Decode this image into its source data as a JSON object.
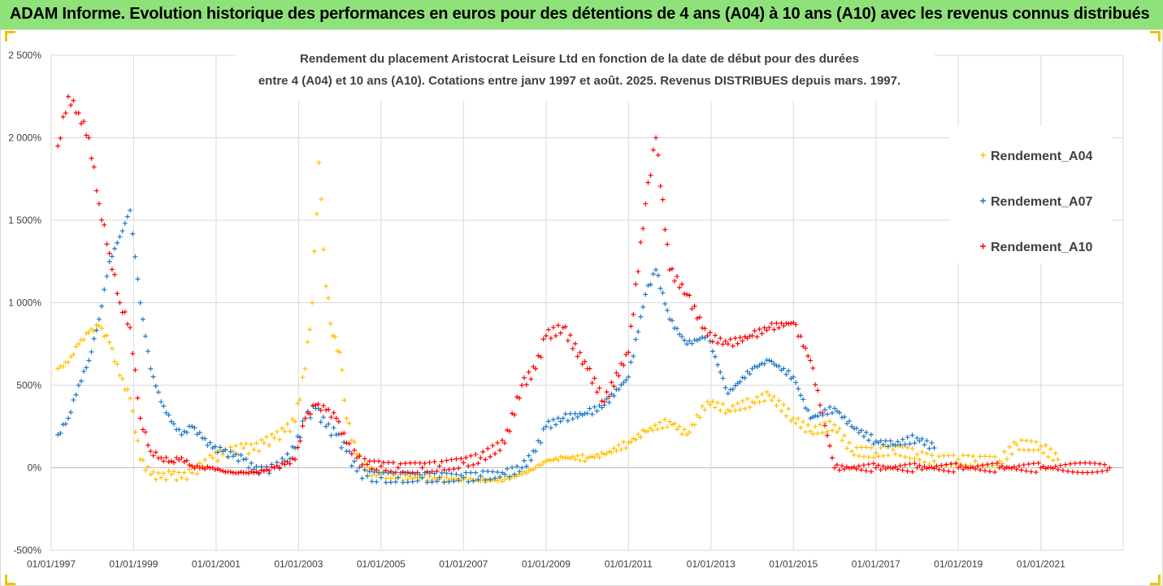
{
  "header": {
    "title": "ADAM Informe. Evolution historique des performances en euros pour des détentions de 4 ans (A04) à 10 ans (A10) avec les revenus connus distribués"
  },
  "chart_data": {
    "type": "scatter",
    "title_lines": [
      "Rendement du placement Aristocrat Leisure Ltd en fonction de la date de début pour des durées",
      "entre 4 (A04) et 10 ans (A10). Cotations entre janv 1997 et août. 2025. Revenus DISTRIBUES depuis mars. 1997."
    ],
    "xlabel": "",
    "ylabel": "",
    "x_tick_labels": [
      "01/01/1997",
      "01/01/1999",
      "01/01/2001",
      "01/01/2003",
      "01/01/2005",
      "01/01/2007",
      "01/01/2009",
      "01/01/2011",
      "01/01/2013",
      "01/01/2015",
      "01/01/2017",
      "01/01/2019",
      "01/01/2021"
    ],
    "x_range": [
      "1997-01-01",
      "2022-12-31"
    ],
    "y_tick_labels": [
      "-500%",
      "0%",
      "500%",
      "1 000%",
      "1 500%",
      "2 000%",
      "2 500%"
    ],
    "ylim": [
      -500,
      2500
    ],
    "grid": true,
    "legend_position": "right",
    "series": [
      {
        "name": "Rendement_A04",
        "color": "#ffc000",
        "points": [
          [
            "1997-03-01",
            600
          ],
          [
            "1997-06-01",
            640
          ],
          [
            "1997-09-01",
            750
          ],
          [
            "1997-12-01",
            820
          ],
          [
            "1998-03-01",
            860
          ],
          [
            "1998-06-01",
            760
          ],
          [
            "1998-09-01",
            560
          ],
          [
            "1998-12-01",
            420
          ],
          [
            "1999-03-01",
            50
          ],
          [
            "1999-06-01",
            -40
          ],
          [
            "1999-09-01",
            -60
          ],
          [
            "1999-12-01",
            -40
          ],
          [
            "2000-03-01",
            -60
          ],
          [
            "2000-06-01",
            -30
          ],
          [
            "2000-09-01",
            10
          ],
          [
            "2000-12-01",
            60
          ],
          [
            "2001-03-01",
            80
          ],
          [
            "2001-06-01",
            100
          ],
          [
            "2001-09-01",
            120
          ],
          [
            "2001-12-01",
            110
          ],
          [
            "2002-03-01",
            150
          ],
          [
            "2002-06-01",
            180
          ],
          [
            "2002-09-01",
            220
          ],
          [
            "2002-12-01",
            280
          ],
          [
            "2003-03-01",
            600
          ],
          [
            "2003-05-01",
            1000
          ],
          [
            "2003-07-01",
            1850
          ],
          [
            "2003-09-01",
            1100
          ],
          [
            "2003-11-01",
            800
          ],
          [
            "2004-01-01",
            700
          ],
          [
            "2004-03-01",
            300
          ],
          [
            "2004-06-01",
            80
          ],
          [
            "2004-09-01",
            -20
          ],
          [
            "2005-01-01",
            -40
          ],
          [
            "2005-06-01",
            -60
          ],
          [
            "2006-01-01",
            -60
          ],
          [
            "2006-06-01",
            -70
          ],
          [
            "2007-01-01",
            -70
          ],
          [
            "2007-06-01",
            -80
          ],
          [
            "2008-01-01",
            -70
          ],
          [
            "2008-06-01",
            -40
          ],
          [
            "2008-10-01",
            0
          ],
          [
            "2009-01-01",
            40
          ],
          [
            "2009-06-01",
            60
          ],
          [
            "2010-01-01",
            60
          ],
          [
            "2010-06-01",
            80
          ],
          [
            "2011-01-01",
            150
          ],
          [
            "2011-06-01",
            220
          ],
          [
            "2012-01-01",
            280
          ],
          [
            "2012-06-01",
            200
          ],
          [
            "2012-12-01",
            400
          ],
          [
            "2013-06-01",
            350
          ],
          [
            "2014-01-01",
            400
          ],
          [
            "2014-06-01",
            440
          ],
          [
            "2015-01-01",
            300
          ],
          [
            "2015-06-01",
            220
          ],
          [
            "2016-01-01",
            260
          ],
          [
            "2016-06-01",
            100
          ],
          [
            "2017-01-01",
            90
          ],
          [
            "2017-06-01",
            110
          ],
          [
            "2018-01-01",
            80
          ],
          [
            "2018-06-01",
            40
          ],
          [
            "2019-01-01",
            50
          ],
          [
            "2019-06-01",
            40
          ],
          [
            "2020-01-01",
            40
          ],
          [
            "2020-06-01",
            140
          ],
          [
            "2021-01-01",
            130
          ],
          [
            "2021-06-01",
            50
          ]
        ]
      },
      {
        "name": "Rendement_A07",
        "color": "#1f77c4",
        "points": [
          [
            "1997-03-01",
            200
          ],
          [
            "1997-06-01",
            300
          ],
          [
            "1997-09-01",
            500
          ],
          [
            "1997-12-01",
            650
          ],
          [
            "1998-03-01",
            900
          ],
          [
            "1998-06-01",
            1250
          ],
          [
            "1998-09-01",
            1400
          ],
          [
            "1998-12-01",
            1560
          ],
          [
            "1999-03-01",
            1000
          ],
          [
            "1999-06-01",
            600
          ],
          [
            "1999-09-01",
            400
          ],
          [
            "1999-12-01",
            280
          ],
          [
            "2000-03-01",
            200
          ],
          [
            "2000-06-01",
            250
          ],
          [
            "2000-09-01",
            180
          ],
          [
            "2000-12-01",
            120
          ],
          [
            "2001-03-01",
            100
          ],
          [
            "2001-06-01",
            70
          ],
          [
            "2001-09-01",
            50
          ],
          [
            "2001-12-01",
            -10
          ],
          [
            "2002-03-01",
            -20
          ],
          [
            "2002-06-01",
            0
          ],
          [
            "2002-09-01",
            40
          ],
          [
            "2002-12-01",
            120
          ],
          [
            "2003-03-01",
            300
          ],
          [
            "2003-06-01",
            360
          ],
          [
            "2003-09-01",
            250
          ],
          [
            "2003-12-01",
            200
          ],
          [
            "2004-03-01",
            100
          ],
          [
            "2004-06-01",
            -20
          ],
          [
            "2004-09-01",
            -50
          ],
          [
            "2005-01-01",
            -60
          ],
          [
            "2005-06-01",
            -60
          ],
          [
            "2006-01-01",
            -60
          ],
          [
            "2006-06-01",
            -60
          ],
          [
            "2007-01-01",
            -60
          ],
          [
            "2007-06-01",
            -50
          ],
          [
            "2008-01-01",
            -40
          ],
          [
            "2008-06-01",
            0
          ],
          [
            "2008-10-01",
            100
          ],
          [
            "2009-01-01",
            250
          ],
          [
            "2009-06-01",
            300
          ],
          [
            "2010-01-01",
            330
          ],
          [
            "2010-06-01",
            380
          ],
          [
            "2011-01-01",
            550
          ],
          [
            "2011-06-01",
            1050
          ],
          [
            "2011-09-01",
            1200
          ],
          [
            "2012-01-01",
            900
          ],
          [
            "2012-06-01",
            750
          ],
          [
            "2012-12-01",
            800
          ],
          [
            "2013-06-01",
            450
          ],
          [
            "2014-01-01",
            600
          ],
          [
            "2014-06-01",
            650
          ],
          [
            "2015-01-01",
            550
          ],
          [
            "2015-06-01",
            300
          ],
          [
            "2016-01-01",
            360
          ],
          [
            "2016-06-01",
            250
          ],
          [
            "2017-01-01",
            160
          ],
          [
            "2017-06-01",
            140
          ],
          [
            "2018-01-01",
            180
          ],
          [
            "2018-06-01",
            120
          ]
        ]
      },
      {
        "name": "Rendement_A10",
        "color": "#ff0000",
        "points": [
          [
            "1997-03-01",
            1950
          ],
          [
            "1997-06-01",
            2250
          ],
          [
            "1997-09-01",
            2150
          ],
          [
            "1997-12-01",
            2000
          ],
          [
            "1998-03-01",
            1600
          ],
          [
            "1998-06-01",
            1300
          ],
          [
            "1998-09-01",
            1000
          ],
          [
            "1998-12-01",
            850
          ],
          [
            "1999-03-01",
            300
          ],
          [
            "1999-06-01",
            100
          ],
          [
            "1999-09-01",
            60
          ],
          [
            "1999-12-01",
            40
          ],
          [
            "2000-03-01",
            60
          ],
          [
            "2000-06-01",
            10
          ],
          [
            "2000-09-01",
            0
          ],
          [
            "2000-12-01",
            0
          ],
          [
            "2001-03-01",
            -20
          ],
          [
            "2001-06-01",
            -30
          ],
          [
            "2001-09-01",
            -30
          ],
          [
            "2001-12-01",
            -30
          ],
          [
            "2002-03-01",
            -20
          ],
          [
            "2002-06-01",
            0
          ],
          [
            "2002-09-01",
            20
          ],
          [
            "2002-12-01",
            50
          ],
          [
            "2003-03-01",
            300
          ],
          [
            "2003-06-01",
            380
          ],
          [
            "2003-09-01",
            350
          ],
          [
            "2003-12-01",
            300
          ],
          [
            "2004-03-01",
            150
          ],
          [
            "2004-06-01",
            60
          ],
          [
            "2004-09-01",
            20
          ],
          [
            "2005-01-01",
            10
          ],
          [
            "2005-06-01",
            0
          ],
          [
            "2006-01-01",
            0
          ],
          [
            "2006-06-01",
            10
          ],
          [
            "2007-01-01",
            30
          ],
          [
            "2007-06-01",
            60
          ],
          [
            "2008-01-01",
            150
          ],
          [
            "2008-06-01",
            500
          ],
          [
            "2008-10-01",
            600
          ],
          [
            "2009-01-01",
            800
          ],
          [
            "2009-06-01",
            850
          ],
          [
            "2010-01-01",
            600
          ],
          [
            "2010-06-01",
            400
          ],
          [
            "2011-01-01",
            700
          ],
          [
            "2011-06-01",
            1600
          ],
          [
            "2011-09-01",
            2000
          ],
          [
            "2012-01-01",
            1200
          ],
          [
            "2012-06-01",
            1050
          ],
          [
            "2012-12-01",
            800
          ],
          [
            "2013-06-01",
            750
          ],
          [
            "2014-01-01",
            800
          ],
          [
            "2014-06-01",
            850
          ],
          [
            "2015-01-01",
            880
          ],
          [
            "2015-06-01",
            650
          ],
          [
            "2016-01-01",
            0
          ],
          [
            "2017-01-01",
            0
          ],
          [
            "2018-01-01",
            0
          ],
          [
            "2019-01-01",
            0
          ],
          [
            "2020-01-01",
            0
          ],
          [
            "2021-01-01",
            0
          ],
          [
            "2022-09-01",
            0
          ]
        ]
      }
    ]
  }
}
